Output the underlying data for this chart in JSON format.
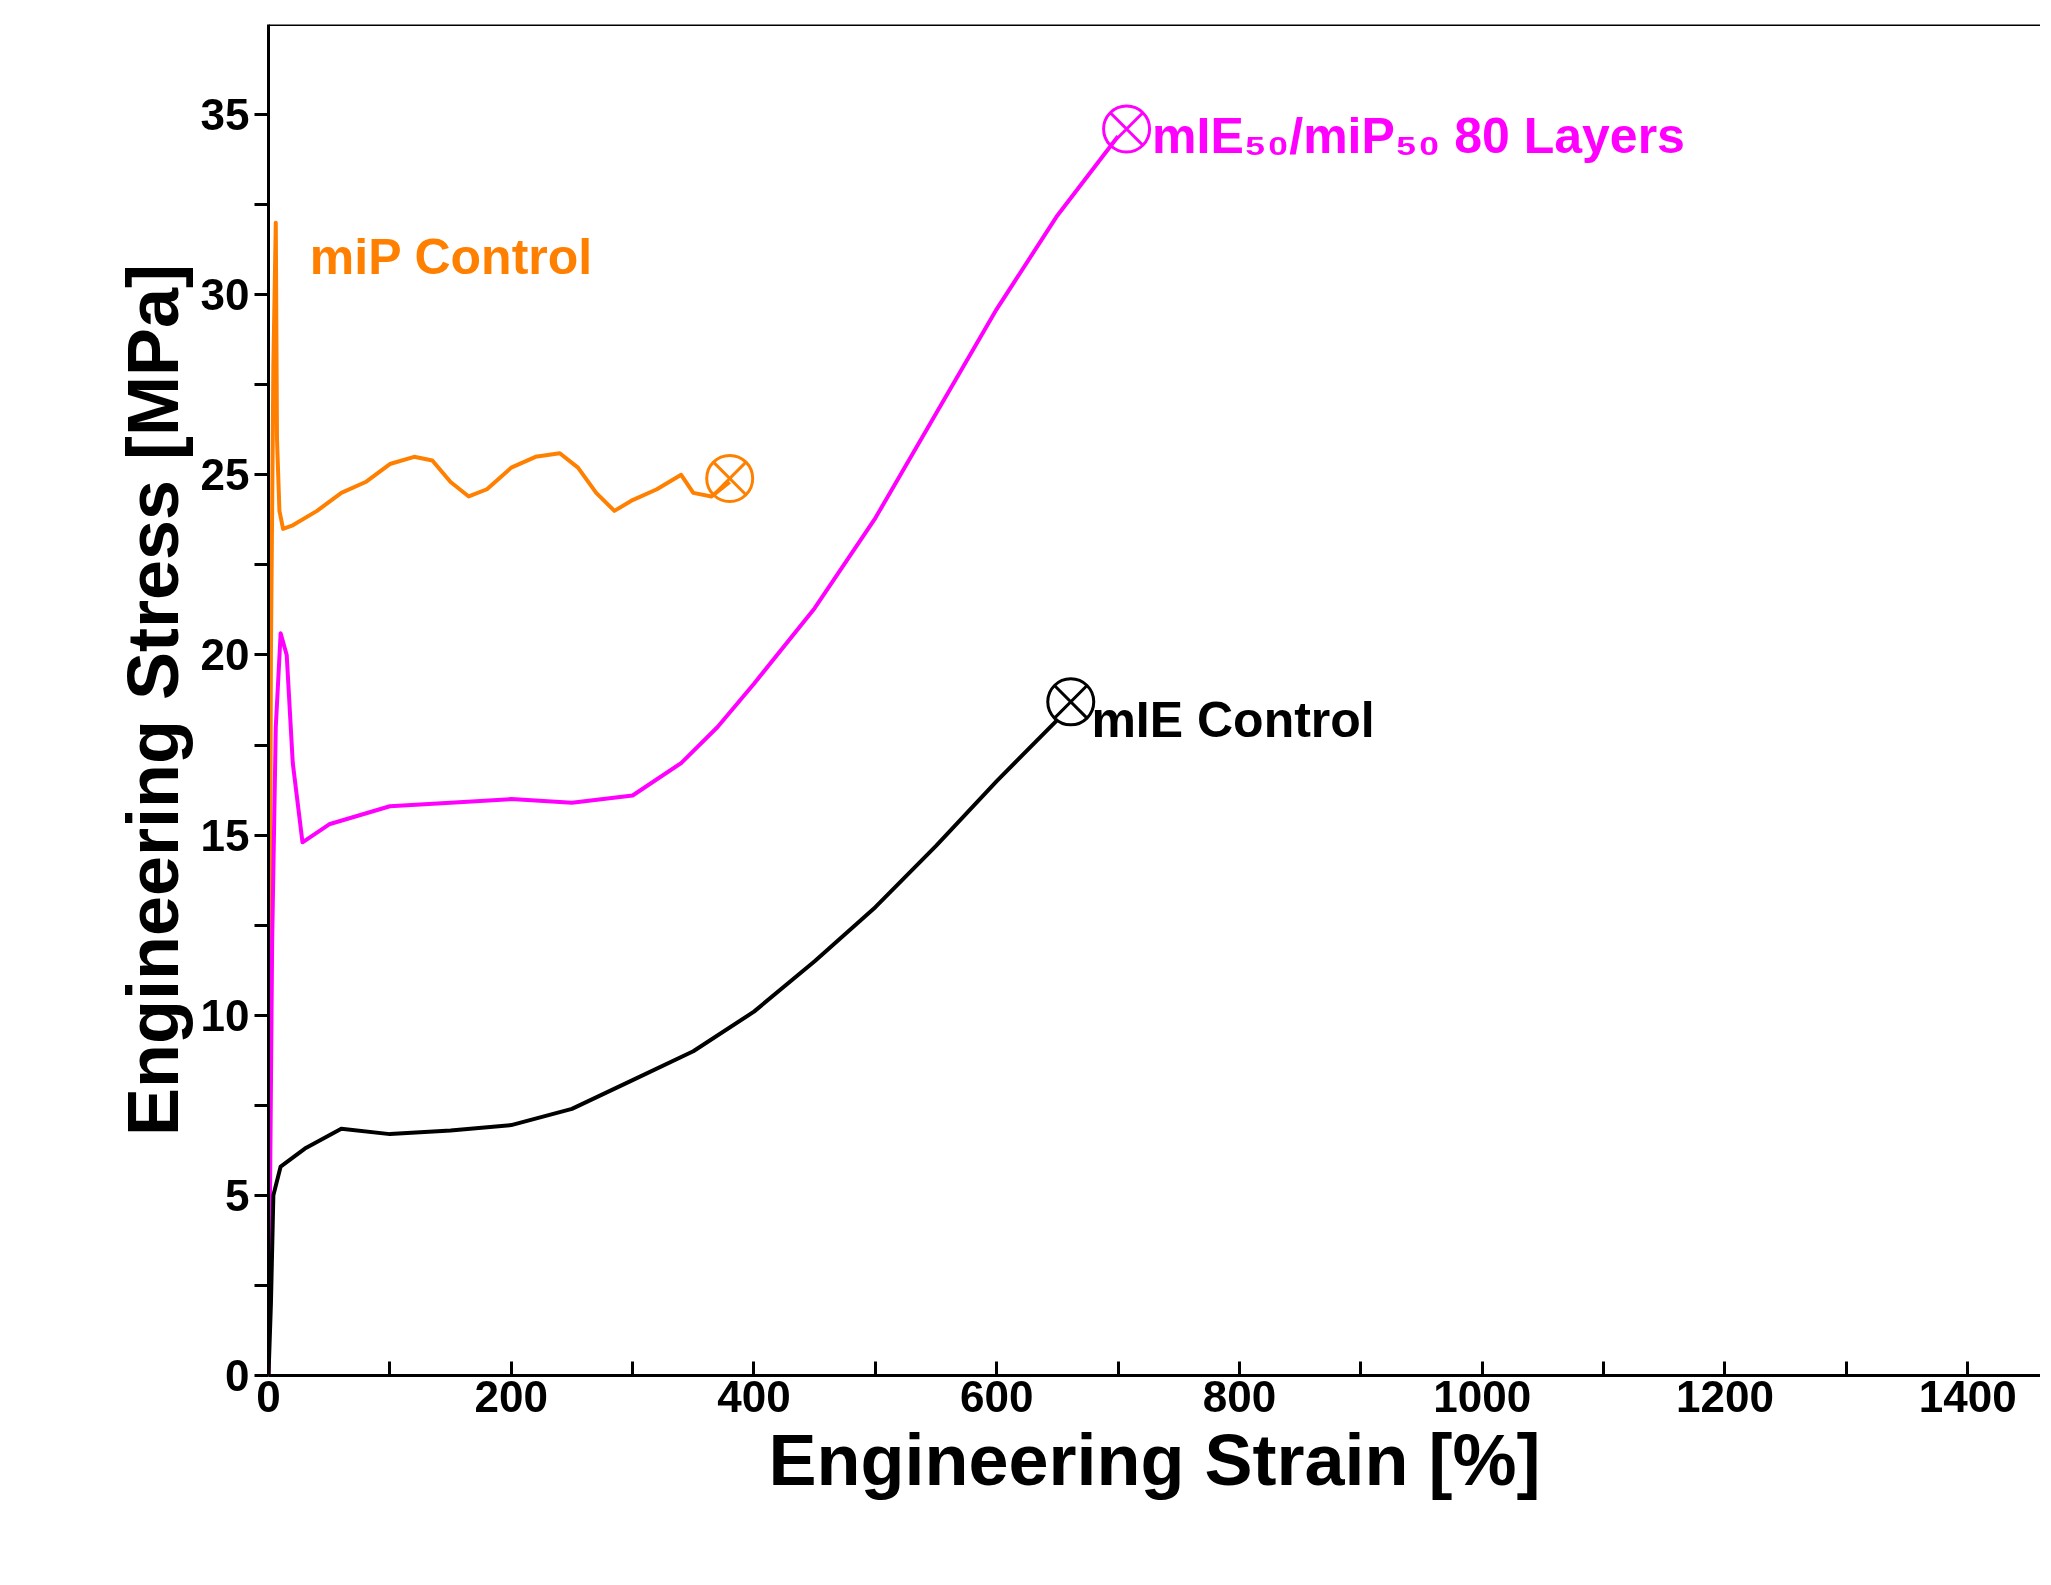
{
  "chart_data": {
    "type": "line",
    "xlabel": "Engineering Strain [%]",
    "ylabel": "Engineering Stress [MPa]",
    "xlim": [
      0,
      1460
    ],
    "ylim": [
      0,
      37.5
    ],
    "xticks": [
      0,
      {
        "value": 100,
        "label": null
      },
      200,
      {
        "value": 300,
        "label": null
      },
      400,
      {
        "value": 500,
        "label": null
      },
      600,
      {
        "value": 700,
        "label": null
      },
      800,
      {
        "value": 900,
        "label": null
      },
      1000,
      {
        "value": 1100,
        "label": null
      },
      1200,
      {
        "value": 1300,
        "label": null
      },
      1400
    ],
    "yticks": [
      0,
      {
        "value": 2.5,
        "label": null
      },
      5,
      {
        "value": 7.5,
        "label": null
      },
      10,
      {
        "value": 12.5,
        "label": null
      },
      15,
      {
        "value": 17.5,
        "label": null
      },
      20,
      {
        "value": 22.5,
        "label": null
      },
      25,
      {
        "value": 27.5,
        "label": null
      },
      30,
      {
        "value": 32.5,
        "label": null
      },
      35
    ],
    "grid": false,
    "legend": false,
    "line_style": "solid",
    "series": [
      {
        "name": "miP Control",
        "color": "#ff8000",
        "x": [
          0,
          2,
          4,
          6,
          7,
          9,
          12,
          20,
          40,
          60,
          80,
          100,
          120,
          135,
          150,
          165,
          180,
          200,
          220,
          240,
          255,
          270,
          285,
          300,
          320,
          340,
          350,
          365,
          380
        ],
        "values": [
          0,
          20,
          28,
          32,
          26,
          24,
          23.5,
          23.6,
          24.0,
          24.5,
          24.8,
          25.3,
          25.5,
          25.4,
          24.8,
          24.4,
          24.6,
          25.2,
          25.5,
          25.6,
          25.2,
          24.5,
          24.0,
          24.3,
          24.6,
          25.0,
          24.5,
          24.4,
          24.8
        ]
      },
      {
        "name": "mIE₅₀/miP₅₀ 80 Layers",
        "color": "#ff00ff",
        "x": [
          0,
          3,
          6,
          10,
          15,
          20,
          28,
          50,
          100,
          150,
          200,
          250,
          300,
          340,
          370,
          400,
          450,
          500,
          550,
          600,
          650,
          700
        ],
        "values": [
          0,
          12,
          18,
          20.6,
          20,
          17,
          14.8,
          15.3,
          15.8,
          15.9,
          16.0,
          15.9,
          16.1,
          17.0,
          18.0,
          19.2,
          21.3,
          23.8,
          26.7,
          29.6,
          32.2,
          34.4
        ]
      },
      {
        "name": "mIE Control",
        "color": "#000000",
        "x": [
          0,
          2,
          4,
          10,
          30,
          60,
          100,
          150,
          200,
          250,
          300,
          350,
          400,
          450,
          500,
          550,
          600,
          650
        ],
        "values": [
          0,
          2,
          5,
          5.8,
          6.3,
          6.85,
          6.7,
          6.8,
          6.95,
          7.4,
          8.2,
          9.0,
          10.1,
          11.5,
          13.0,
          14.7,
          16.5,
          18.2
        ]
      },
      {
        "type": "scatter",
        "color": "#ff8000",
        "x": [
          380
        ],
        "values": [
          24.9
        ]
      },
      {
        "type": "scatter",
        "color": "#ff00ff",
        "x": [
          707
        ],
        "values": [
          34.6
        ]
      },
      {
        "type": "scatter",
        "color": "#000000",
        "x": [
          661
        ],
        "values": [
          18.7
        ]
      }
    ]
  }
}
